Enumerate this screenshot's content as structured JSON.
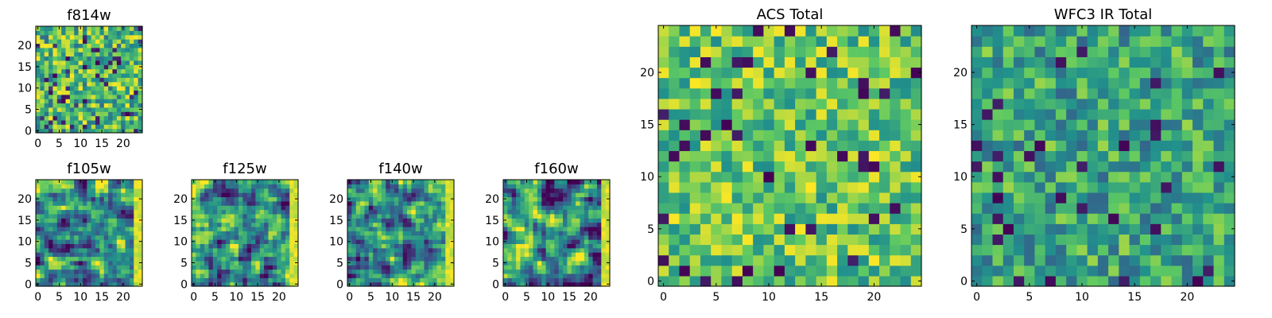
{
  "colormap": {
    "name": "viridis",
    "stops": [
      "#440154",
      "#3b528b",
      "#21918c",
      "#5ec962",
      "#fde725"
    ]
  },
  "chart_data": [
    {
      "type": "heatmap",
      "title": "f814w",
      "grid_size": 25,
      "xticks": [
        0,
        5,
        10,
        15,
        20
      ],
      "yticks": [
        0,
        5,
        10,
        15,
        20
      ],
      "texture": "speckled",
      "seed": 11
    },
    {
      "type": "heatmap",
      "title": "f105w",
      "grid_size": 25,
      "xticks": [
        0,
        5,
        10,
        15,
        20
      ],
      "yticks": [
        0,
        5,
        10,
        15,
        20
      ],
      "texture": "smooth",
      "seed": 23
    },
    {
      "type": "heatmap",
      "title": "f125w",
      "grid_size": 25,
      "xticks": [
        0,
        5,
        10,
        15,
        20
      ],
      "yticks": [
        0,
        5,
        10,
        15,
        20
      ],
      "texture": "smooth",
      "seed": 37
    },
    {
      "type": "heatmap",
      "title": "f140w",
      "grid_size": 25,
      "xticks": [
        0,
        5,
        10,
        15,
        20
      ],
      "yticks": [
        0,
        5,
        10,
        15,
        20
      ],
      "texture": "smooth",
      "seed": 41
    },
    {
      "type": "heatmap",
      "title": "f160w",
      "grid_size": 25,
      "xticks": [
        0,
        5,
        10,
        15,
        20
      ],
      "yticks": [
        0,
        5,
        10,
        15,
        20
      ],
      "texture": "smooth",
      "seed": 53
    },
    {
      "type": "heatmap",
      "title": "ACS Total",
      "grid_size": 25,
      "xticks": [
        0,
        5,
        10,
        15,
        20
      ],
      "yticks": [
        0,
        5,
        10,
        15,
        20
      ],
      "texture": "bright",
      "seed": 67
    },
    {
      "type": "heatmap",
      "title": "WFC3 IR Total",
      "grid_size": 25,
      "xticks": [
        0,
        5,
        10,
        15,
        20
      ],
      "yticks": [
        0,
        5,
        10,
        15,
        20
      ],
      "texture": "mid",
      "seed": 79
    }
  ]
}
